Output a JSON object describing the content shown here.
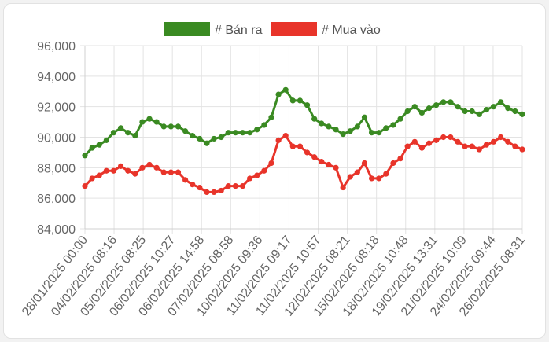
{
  "chart_data": {
    "type": "line",
    "title": "",
    "xlabel": "",
    "ylabel": "",
    "ylim": [
      84000,
      96000
    ],
    "yticks": [
      84000,
      86000,
      88000,
      90000,
      92000,
      94000,
      96000
    ],
    "ytick_labels": [
      "84,000",
      "86,000",
      "88,000",
      "90,000",
      "92,000",
      "94,000",
      "96,000"
    ],
    "xtick_labels": [
      "28/01/2025 00:00",
      "04/02/2025 08:16",
      "05/02/2025 08:25",
      "06/02/2025 10:27",
      "06/02/2025 14:58",
      "07/02/2025 08:58",
      "10/02/2025 09:36",
      "11/02/2025 09:17",
      "11/02/2025 10:57",
      "12/02/2025 08:21",
      "15/02/2025 08:18",
      "18/02/2025 10:48",
      "19/02/2025 13:31",
      "21/02/2025 10:09",
      "24/02/2025 09:44",
      "26/02/2025 08:31"
    ],
    "grid": true,
    "legend_position": "top",
    "series": [
      {
        "name": "# Bán ra",
        "color": "#3a8a22",
        "values": [
          88800,
          89300,
          89500,
          89800,
          90300,
          90600,
          90300,
          90100,
          91000,
          91200,
          91000,
          90700,
          90700,
          90700,
          90400,
          90100,
          89900,
          89600,
          89900,
          90000,
          90300,
          90300,
          90300,
          90300,
          90500,
          90800,
          91300,
          92800,
          93100,
          92400,
          92400,
          92100,
          91200,
          90900,
          90700,
          90500,
          90200,
          90400,
          90700,
          91300,
          90300,
          90300,
          90600,
          90800,
          91200,
          91700,
          92000,
          91600,
          91900,
          92100,
          92300,
          92300,
          92000,
          91700,
          91700,
          91500,
          91800,
          92000,
          92300,
          91900,
          91700,
          91500
        ]
      },
      {
        "name": "# Mua vào",
        "color": "#e8342a",
        "values": [
          86800,
          87300,
          87500,
          87800,
          87800,
          88100,
          87800,
          87600,
          88000,
          88200,
          88000,
          87700,
          87700,
          87700,
          87200,
          86900,
          86700,
          86400,
          86400,
          86500,
          86800,
          86800,
          86800,
          87300,
          87500,
          87800,
          88300,
          89800,
          90100,
          89400,
          89400,
          89000,
          88700,
          88400,
          88200,
          88000,
          86700,
          87400,
          87700,
          88300,
          87300,
          87300,
          87600,
          88300,
          88600,
          89400,
          89700,
          89300,
          89600,
          89800,
          90000,
          90000,
          89700,
          89400,
          89400,
          89200,
          89500,
          89700,
          90000,
          89700,
          89400,
          89200
        ]
      }
    ]
  }
}
